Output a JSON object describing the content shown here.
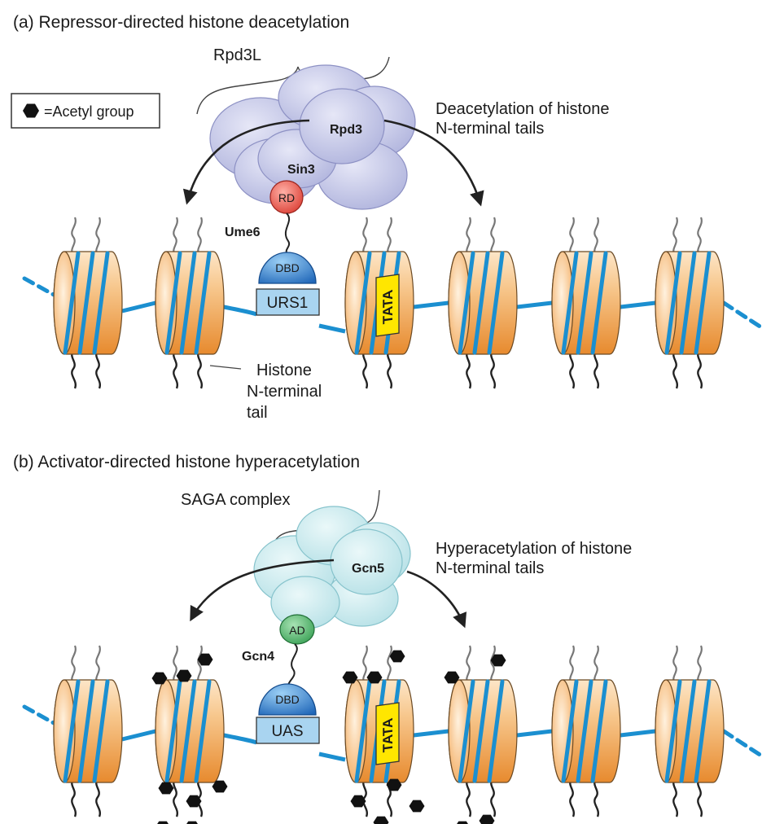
{
  "panel_a": {
    "title": "(a)  Repressor-directed histone deacetylation",
    "complex_label": "Rpd3L",
    "enzyme_label": "Rpd3",
    "corepressor_label": "Sin3",
    "domain_label": "RD",
    "protein_label": "Ume6",
    "dbd_label": "DBD",
    "site_label": "URS1",
    "tata_label": "TATA",
    "effect_label": [
      "Deacetylation of histone",
      "N-terminal tails"
    ],
    "tail_label": [
      "Histone",
      "N-terminal",
      "tail"
    ],
    "legend_label": "=Acetyl group"
  },
  "panel_b": {
    "title": "(b)  Activator-directed histone hyperacetylation",
    "complex_label": "SAGA complex",
    "enzyme_label": "Gcn5",
    "domain_label": "AD",
    "protein_label": "Gcn4",
    "dbd_label": "DBD",
    "site_label": "UAS",
    "tata_label": "TATA",
    "effect_label": [
      "Hyperacetylation of histone",
      "N-terminal tails"
    ]
  },
  "colors": {
    "nucleosome": "#f0a24e",
    "dna": "#1b8fd0",
    "rpd3l_complex": "#c9cbea",
    "saga_complex": "#cfeaee",
    "repression_domain": "#e0453a",
    "activation_domain": "#3fa95a",
    "dbd": "#2b74c4",
    "site_box": "#a9d4f0",
    "tata_box": "#ffe600",
    "acetyl": "#111111"
  }
}
